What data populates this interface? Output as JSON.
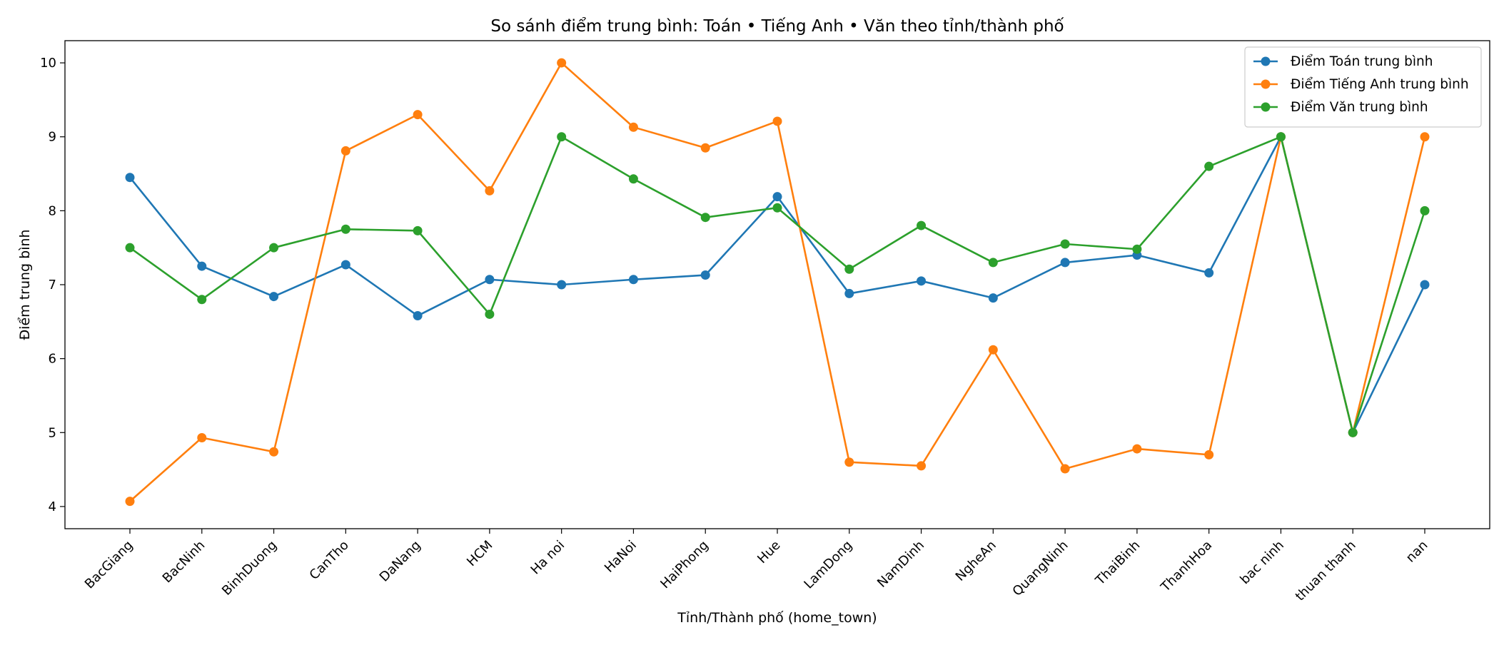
{
  "chart_data": {
    "type": "line",
    "title": "So sánh điểm trung bình: Toán • Tiếng Anh • Văn theo tỉnh/thành phố",
    "xlabel": "Tỉnh/Thành phố (home_town)",
    "ylabel": "Điểm trung bình",
    "categories": [
      "BacGiang",
      "BacNinh",
      "BinhDuong",
      "CanTho",
      "DaNang",
      "HCM",
      "Ha noi",
      "HaNoi",
      "HaiPhong",
      "Hue",
      "LamDong",
      "NamDinh",
      "NgheAn",
      "QuangNinh",
      "ThaiBinh",
      "ThanhHoa",
      "bac ninh",
      "thuan thanh",
      "nan"
    ],
    "ylim": [
      3.7,
      10.3
    ],
    "yticks": [
      4,
      5,
      6,
      7,
      8,
      9,
      10
    ],
    "grid": false,
    "legend_position": "top-right",
    "series": [
      {
        "name": "Điểm Toán trung bình",
        "color": "#1f77b4",
        "values": [
          8.45,
          7.25,
          6.84,
          7.27,
          6.58,
          7.07,
          7.0,
          7.07,
          7.13,
          8.19,
          6.88,
          7.05,
          6.82,
          7.3,
          7.4,
          7.16,
          9.0,
          5.0,
          7.0
        ]
      },
      {
        "name": "Điểm Tiếng Anh trung bình",
        "color": "#ff7f0e",
        "values": [
          4.07,
          4.93,
          4.74,
          8.81,
          9.3,
          8.27,
          10.0,
          9.13,
          8.85,
          9.21,
          4.6,
          4.55,
          6.12,
          4.51,
          4.78,
          4.7,
          9.0,
          5.0,
          9.0
        ]
      },
      {
        "name": "Điểm Văn trung bình",
        "color": "#2ca02c",
        "values": [
          7.5,
          6.8,
          7.5,
          7.75,
          7.73,
          6.6,
          9.0,
          8.43,
          7.91,
          8.04,
          7.21,
          7.8,
          7.3,
          7.55,
          7.48,
          8.6,
          9.0,
          5.0,
          8.0
        ]
      }
    ]
  }
}
